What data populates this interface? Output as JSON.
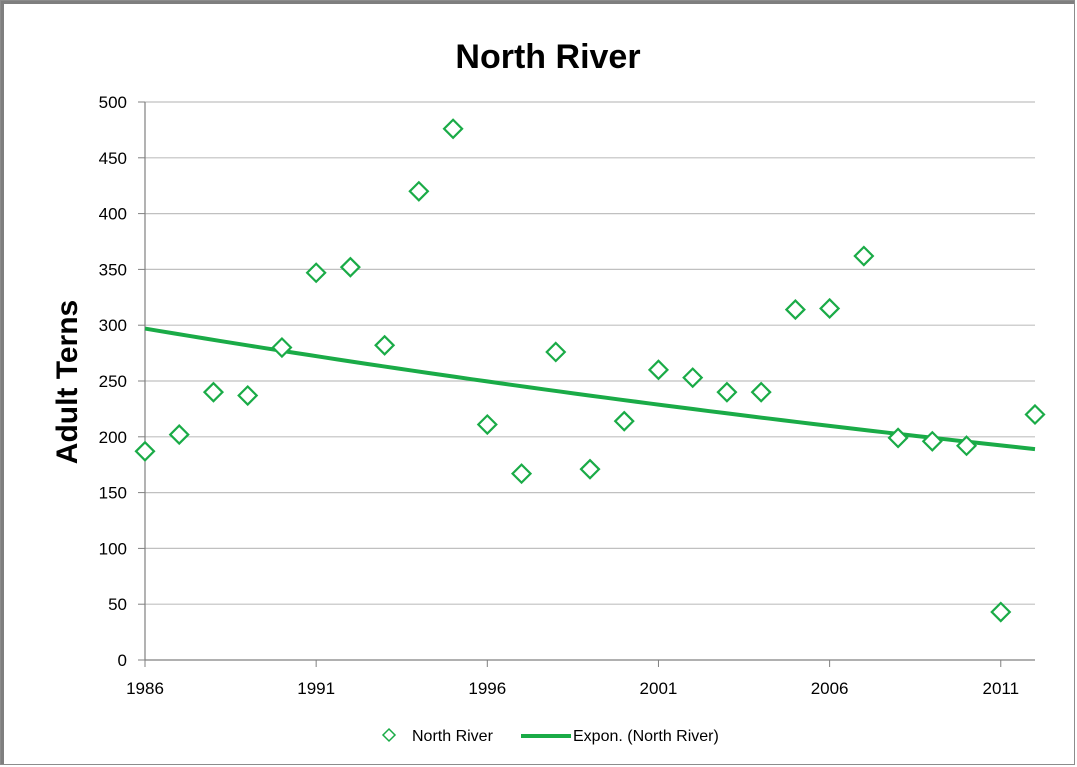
{
  "chart_data": {
    "type": "scatter",
    "title": "North River",
    "xlabel": "",
    "ylabel": "Adult Terns",
    "xlim": [
      1986,
      2012
    ],
    "ylim": [
      0,
      500
    ],
    "x_ticks": [
      1986,
      1991,
      1996,
      2001,
      2006,
      2011
    ],
    "y_ticks": [
      0,
      50,
      100,
      150,
      200,
      250,
      300,
      350,
      400,
      450,
      500
    ],
    "grid": "horizontal",
    "legend_position": "bottom",
    "series": [
      {
        "name": "North River",
        "marker": "diamond-open",
        "color": "#1aab47",
        "x": [
          1986,
          1987,
          1988,
          1989,
          1990,
          1991,
          1992,
          1993,
          1994,
          1995,
          1996,
          1997,
          1998,
          1999,
          2000,
          2001,
          2002,
          2003,
          2004,
          2005,
          2006,
          2007,
          2008,
          2009,
          2010,
          2011,
          2012
        ],
        "y": [
          187,
          202,
          240,
          237,
          280,
          347,
          352,
          282,
          420,
          476,
          211,
          167,
          276,
          171,
          214,
          260,
          253,
          240,
          240,
          314,
          315,
          362,
          199,
          196,
          192,
          43,
          220
        ]
      }
    ],
    "trendline": {
      "name": "Expon. (North River)",
      "type": "exponential",
      "color": "#1aab47",
      "x": [
        1986,
        2012
      ],
      "y": [
        297,
        189
      ]
    }
  },
  "colors": {
    "series": "#1aab47",
    "gridline": "#c0c0c0",
    "axis": "#808080",
    "frame": "#8c8c8c"
  }
}
